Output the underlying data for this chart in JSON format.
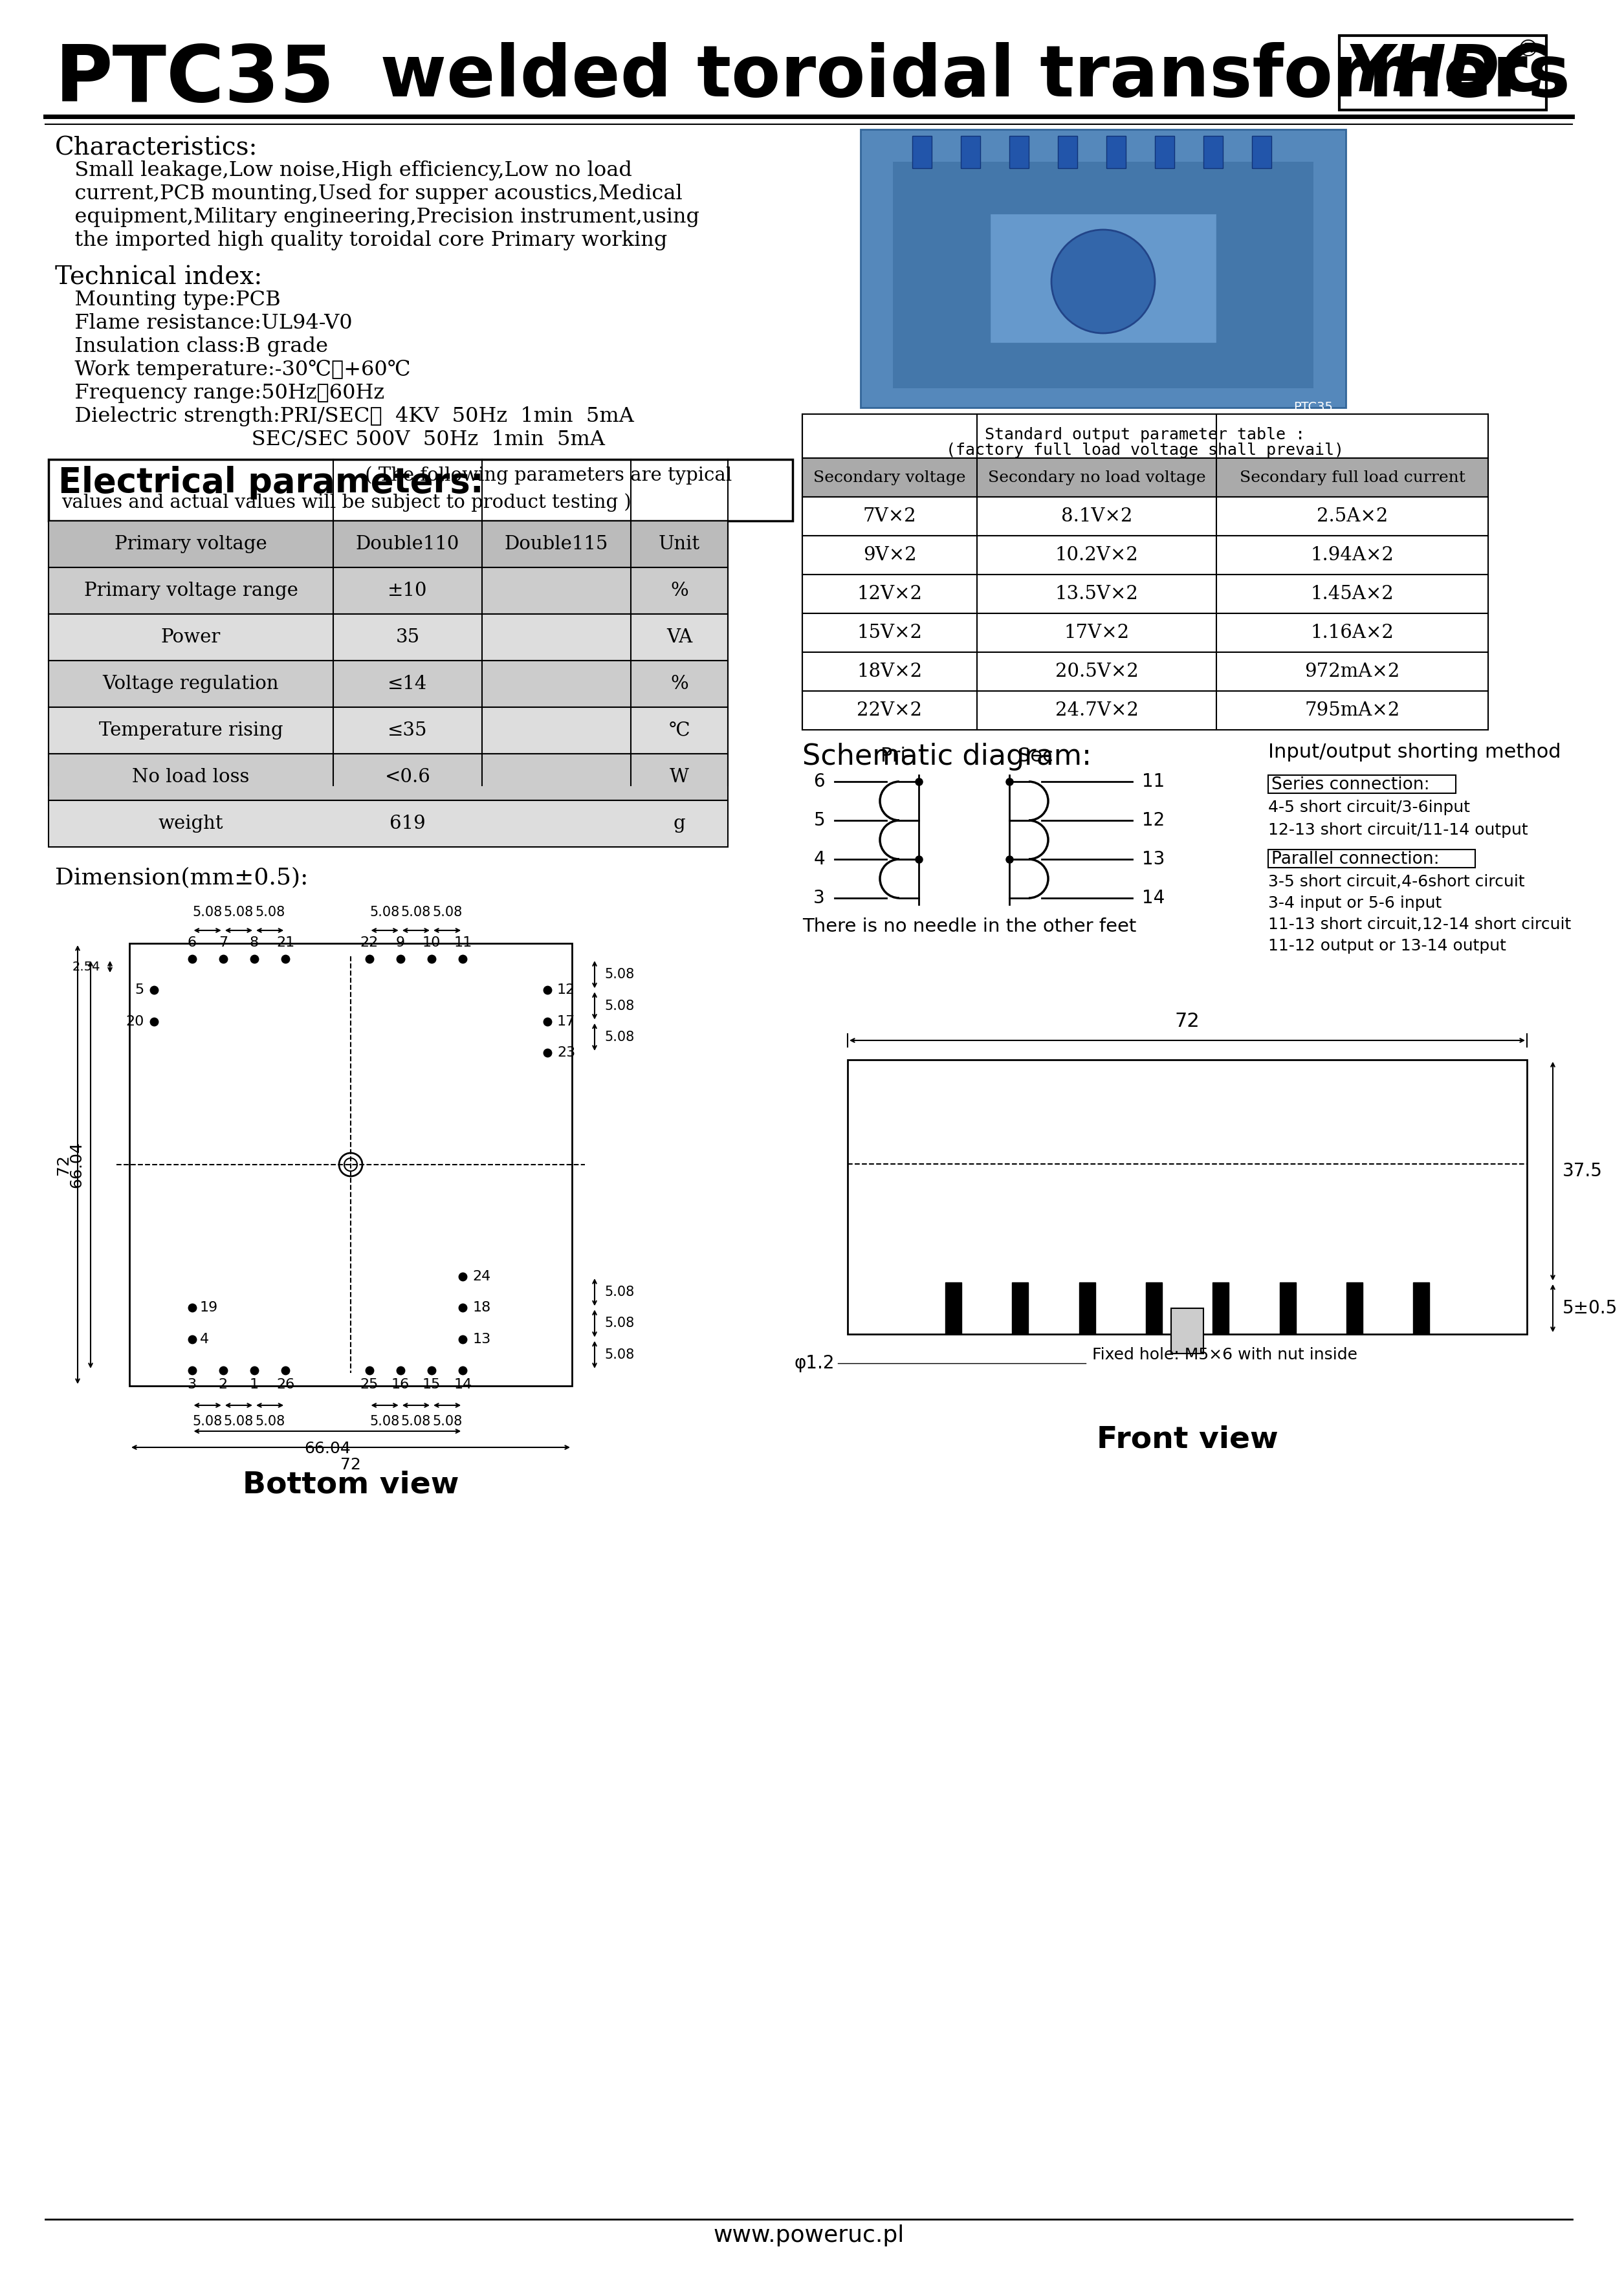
{
  "title_ptc": "PTC35",
  "title_rest": "  welded toroidal transformers",
  "yhdc_logo": "YHDC",
  "characteristics_title": "Characteristics:",
  "char_lines": [
    "   Small leakage,Low noise,High efficiency,Low no load",
    "   current,PCB mounting,Used for supper acoustics,Medical",
    "   equipment,Military engineering,Precision instrument,using",
    "   the imported high quality toroidal core Primary working"
  ],
  "tech_title": "Technical index:",
  "tech_items": [
    "   Mounting type:PCB",
    "   Flame resistance:UL94-V0",
    "   Insulation class:B grade",
    "   Work temperature:-30℃～+60℃",
    "   Frequency range:50Hz～60Hz",
    "   Dielectric strength:PRI/SEC：  4KV  50Hz  1min  5mA",
    "                              SEC/SEC 500V  50Hz  1min  5mA"
  ],
  "elec_title": "Electrical parameters:",
  "elec_sub1": " ( The following parameters are typical",
  "elec_sub2": "values and actual values will be subject to product testing )",
  "tbl_headers": [
    "Primary voltage",
    "Double110",
    "Double115",
    "Unit"
  ],
  "tbl_rows": [
    [
      "Primary voltage range",
      "±10",
      "",
      "%"
    ],
    [
      "Power",
      "35",
      "",
      "VA"
    ],
    [
      "Voltage regulation",
      "≤14",
      "",
      "%"
    ],
    [
      "Temperature rising",
      "≤35",
      "",
      "℃"
    ],
    [
      "No load loss",
      "<0.6",
      "",
      "W"
    ],
    [
      "weight",
      "619",
      "",
      "g"
    ]
  ],
  "dim_label": "Dimension(mm±0.5):",
  "std_title_line1": "Standard output parameter table :",
  "std_title_line2": "(factory full load voltage shall prevail)",
  "std_headers": [
    "Secondary voltage",
    "Secondary no load voltage",
    "Secondary full load current"
  ],
  "std_rows": [
    [
      "7V×2",
      "8.1V×2",
      "2.5A×2"
    ],
    [
      "9V×2",
      "10.2V×2",
      "1.94A×2"
    ],
    [
      "12V×2",
      "13.5V×2",
      "1.45A×2"
    ],
    [
      "15V×2",
      "17V×2",
      "1.16A×2"
    ],
    [
      "18V×2",
      "20.5V×2",
      "972mA×2"
    ],
    [
      "22V×2",
      "24.7V×2",
      "795mA×2"
    ]
  ],
  "sch_title": "Schematic diagram:",
  "sch_pri_label": "Pri",
  "sch_sec_label": "Sec",
  "sch_pins_left": [
    "6",
    "5",
    "4",
    "3"
  ],
  "sch_pins_right": [
    "11",
    "12",
    "13",
    "14"
  ],
  "sch_no_needle": "There is no needle in the other feet",
  "io_title": "Input/output shorting method",
  "series_title": "Series connection:",
  "series_lines": [
    "4-5 short circuit/3-6input",
    "12-13 short circuit/11-14 output"
  ],
  "parallel_title": "Parallel connection:",
  "parallel_lines": [
    "3-5 short circuit,4-6short circuit",
    "3-4 input or 5-6 input",
    "11-13 short circuit,12-14 short circuit",
    "11-12 output or 13-14 output"
  ],
  "bottom_label": "Bottom view",
  "front_label": "Front view",
  "phi_label": "φ1.2",
  "fixed_hole": "Fixed hole: M5×6 with nut inside",
  "dim_72": "72",
  "dim_6604": "66.04",
  "dim_375": "37.5",
  "dim_5pm": "5±0.5",
  "website": "www.poweruc.pl"
}
